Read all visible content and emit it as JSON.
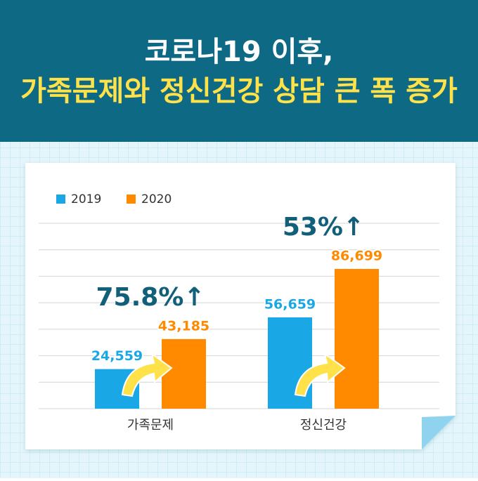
{
  "chart_data": {
    "type": "bar",
    "title": "코로나19 이후,",
    "subtitle": "가족문제와 정신건강 상담 큰 폭 증가",
    "categories": [
      "가족문제",
      "정신건강"
    ],
    "series": [
      {
        "name": "2019",
        "color": "#1aa7e6",
        "values": [
          24559,
          56659
        ],
        "value_labels": [
          "24,559",
          "56,659"
        ]
      },
      {
        "name": "2020",
        "color": "#ff8a00",
        "values": [
          43185,
          86699
        ],
        "value_labels": [
          "43,185",
          "86,699"
        ]
      }
    ],
    "annotations": [
      "75.8%↑",
      "53%↑"
    ],
    "ylim": [
      0,
      115000
    ],
    "grid": true
  }
}
